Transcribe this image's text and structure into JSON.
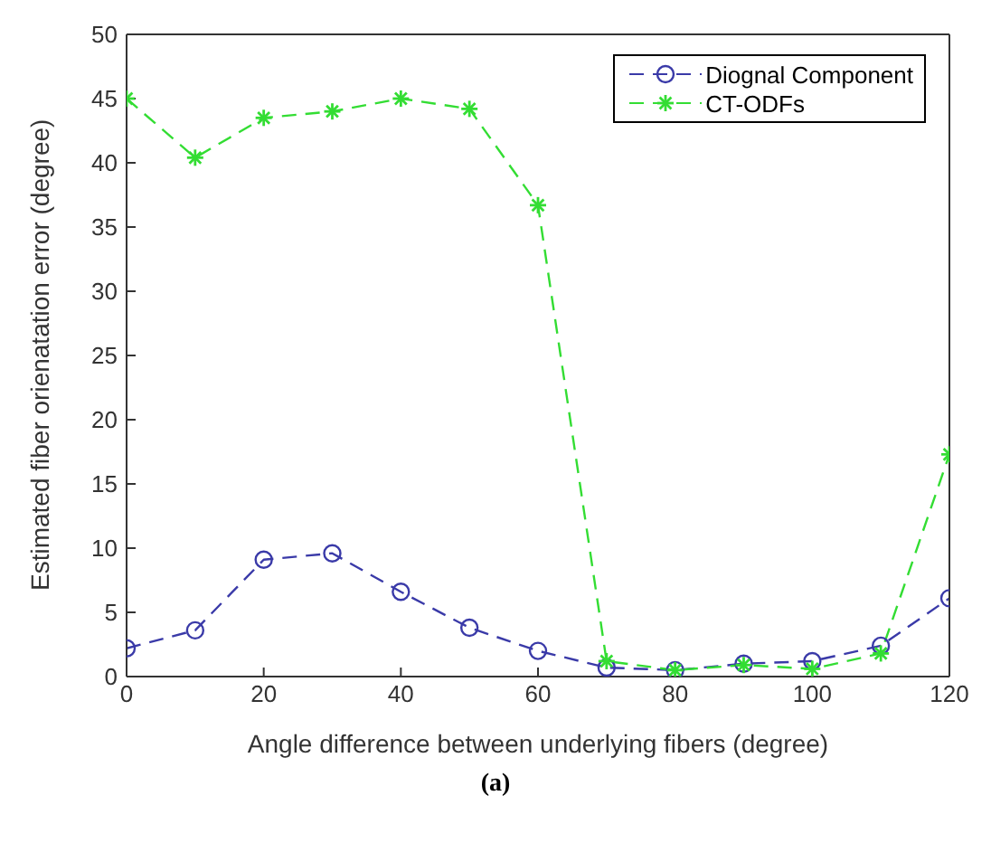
{
  "chart_data": {
    "type": "line",
    "xlabel": "Angle difference between underlying fibers (degree)",
    "ylabel": "Estimated fiber orienatation error (degree)",
    "annotations": [
      "(a)"
    ],
    "x": [
      0,
      10,
      20,
      30,
      40,
      50,
      60,
      70,
      80,
      90,
      100,
      110,
      120
    ],
    "series": [
      {
        "name": "Diognal Component",
        "color": "#3a3aa8",
        "marker": "circle",
        "line_style": "dashed",
        "values": [
          2.2,
          3.6,
          9.1,
          9.6,
          6.6,
          3.8,
          2.0,
          0.7,
          0.5,
          1.0,
          1.2,
          2.4,
          6.1
        ]
      },
      {
        "name": "CT-ODFs",
        "color": "#33dd33",
        "marker": "cross",
        "line_style": "dashed",
        "values": [
          45,
          40.4,
          43.5,
          44,
          45,
          44.2,
          36.7,
          1.2,
          0.5,
          0.9,
          0.6,
          1.8,
          17.3
        ]
      }
    ],
    "xlim": [
      0,
      120
    ],
    "xticks": [
      0,
      20,
      40,
      60,
      80,
      100,
      120
    ],
    "ylim": [
      0,
      50
    ],
    "yticks": [
      0,
      5,
      10,
      15,
      20,
      25,
      30,
      35,
      40,
      45,
      50
    ],
    "grid": false,
    "legend": "top right"
  }
}
